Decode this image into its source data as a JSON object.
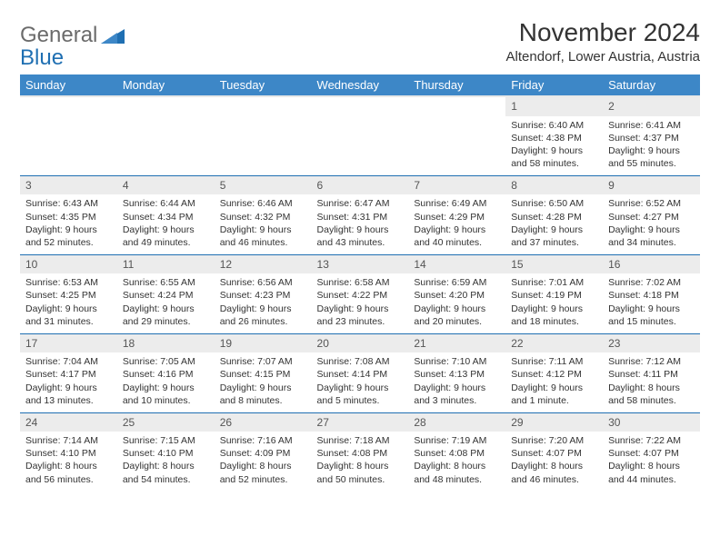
{
  "brand": {
    "word1": "General",
    "word2": "Blue"
  },
  "title": "November 2024",
  "location": "Altendorf, Lower Austria, Austria",
  "colors": {
    "header_bg": "#3d87c7",
    "header_text": "#ffffff",
    "daynum_bg": "#ececec",
    "cell_border": "#1f6fb2",
    "brand_gray": "#6b6b6b",
    "brand_blue": "#1f6fb2",
    "text": "#333333"
  },
  "weekdays": [
    "Sunday",
    "Monday",
    "Tuesday",
    "Wednesday",
    "Thursday",
    "Friday",
    "Saturday"
  ],
  "weeks": [
    [
      {
        "empty": true
      },
      {
        "empty": true
      },
      {
        "empty": true
      },
      {
        "empty": true
      },
      {
        "empty": true
      },
      {
        "day": "1",
        "sunrise": "Sunrise: 6:40 AM",
        "sunset": "Sunset: 4:38 PM",
        "daylight": "Daylight: 9 hours and 58 minutes."
      },
      {
        "day": "2",
        "sunrise": "Sunrise: 6:41 AM",
        "sunset": "Sunset: 4:37 PM",
        "daylight": "Daylight: 9 hours and 55 minutes."
      }
    ],
    [
      {
        "day": "3",
        "sunrise": "Sunrise: 6:43 AM",
        "sunset": "Sunset: 4:35 PM",
        "daylight": "Daylight: 9 hours and 52 minutes."
      },
      {
        "day": "4",
        "sunrise": "Sunrise: 6:44 AM",
        "sunset": "Sunset: 4:34 PM",
        "daylight": "Daylight: 9 hours and 49 minutes."
      },
      {
        "day": "5",
        "sunrise": "Sunrise: 6:46 AM",
        "sunset": "Sunset: 4:32 PM",
        "daylight": "Daylight: 9 hours and 46 minutes."
      },
      {
        "day": "6",
        "sunrise": "Sunrise: 6:47 AM",
        "sunset": "Sunset: 4:31 PM",
        "daylight": "Daylight: 9 hours and 43 minutes."
      },
      {
        "day": "7",
        "sunrise": "Sunrise: 6:49 AM",
        "sunset": "Sunset: 4:29 PM",
        "daylight": "Daylight: 9 hours and 40 minutes."
      },
      {
        "day": "8",
        "sunrise": "Sunrise: 6:50 AM",
        "sunset": "Sunset: 4:28 PM",
        "daylight": "Daylight: 9 hours and 37 minutes."
      },
      {
        "day": "9",
        "sunrise": "Sunrise: 6:52 AM",
        "sunset": "Sunset: 4:27 PM",
        "daylight": "Daylight: 9 hours and 34 minutes."
      }
    ],
    [
      {
        "day": "10",
        "sunrise": "Sunrise: 6:53 AM",
        "sunset": "Sunset: 4:25 PM",
        "daylight": "Daylight: 9 hours and 31 minutes."
      },
      {
        "day": "11",
        "sunrise": "Sunrise: 6:55 AM",
        "sunset": "Sunset: 4:24 PM",
        "daylight": "Daylight: 9 hours and 29 minutes."
      },
      {
        "day": "12",
        "sunrise": "Sunrise: 6:56 AM",
        "sunset": "Sunset: 4:23 PM",
        "daylight": "Daylight: 9 hours and 26 minutes."
      },
      {
        "day": "13",
        "sunrise": "Sunrise: 6:58 AM",
        "sunset": "Sunset: 4:22 PM",
        "daylight": "Daylight: 9 hours and 23 minutes."
      },
      {
        "day": "14",
        "sunrise": "Sunrise: 6:59 AM",
        "sunset": "Sunset: 4:20 PM",
        "daylight": "Daylight: 9 hours and 20 minutes."
      },
      {
        "day": "15",
        "sunrise": "Sunrise: 7:01 AM",
        "sunset": "Sunset: 4:19 PM",
        "daylight": "Daylight: 9 hours and 18 minutes."
      },
      {
        "day": "16",
        "sunrise": "Sunrise: 7:02 AM",
        "sunset": "Sunset: 4:18 PM",
        "daylight": "Daylight: 9 hours and 15 minutes."
      }
    ],
    [
      {
        "day": "17",
        "sunrise": "Sunrise: 7:04 AM",
        "sunset": "Sunset: 4:17 PM",
        "daylight": "Daylight: 9 hours and 13 minutes."
      },
      {
        "day": "18",
        "sunrise": "Sunrise: 7:05 AM",
        "sunset": "Sunset: 4:16 PM",
        "daylight": "Daylight: 9 hours and 10 minutes."
      },
      {
        "day": "19",
        "sunrise": "Sunrise: 7:07 AM",
        "sunset": "Sunset: 4:15 PM",
        "daylight": "Daylight: 9 hours and 8 minutes."
      },
      {
        "day": "20",
        "sunrise": "Sunrise: 7:08 AM",
        "sunset": "Sunset: 4:14 PM",
        "daylight": "Daylight: 9 hours and 5 minutes."
      },
      {
        "day": "21",
        "sunrise": "Sunrise: 7:10 AM",
        "sunset": "Sunset: 4:13 PM",
        "daylight": "Daylight: 9 hours and 3 minutes."
      },
      {
        "day": "22",
        "sunrise": "Sunrise: 7:11 AM",
        "sunset": "Sunset: 4:12 PM",
        "daylight": "Daylight: 9 hours and 1 minute."
      },
      {
        "day": "23",
        "sunrise": "Sunrise: 7:12 AM",
        "sunset": "Sunset: 4:11 PM",
        "daylight": "Daylight: 8 hours and 58 minutes."
      }
    ],
    [
      {
        "day": "24",
        "sunrise": "Sunrise: 7:14 AM",
        "sunset": "Sunset: 4:10 PM",
        "daylight": "Daylight: 8 hours and 56 minutes."
      },
      {
        "day": "25",
        "sunrise": "Sunrise: 7:15 AM",
        "sunset": "Sunset: 4:10 PM",
        "daylight": "Daylight: 8 hours and 54 minutes."
      },
      {
        "day": "26",
        "sunrise": "Sunrise: 7:16 AM",
        "sunset": "Sunset: 4:09 PM",
        "daylight": "Daylight: 8 hours and 52 minutes."
      },
      {
        "day": "27",
        "sunrise": "Sunrise: 7:18 AM",
        "sunset": "Sunset: 4:08 PM",
        "daylight": "Daylight: 8 hours and 50 minutes."
      },
      {
        "day": "28",
        "sunrise": "Sunrise: 7:19 AM",
        "sunset": "Sunset: 4:08 PM",
        "daylight": "Daylight: 8 hours and 48 minutes."
      },
      {
        "day": "29",
        "sunrise": "Sunrise: 7:20 AM",
        "sunset": "Sunset: 4:07 PM",
        "daylight": "Daylight: 8 hours and 46 minutes."
      },
      {
        "day": "30",
        "sunrise": "Sunrise: 7:22 AM",
        "sunset": "Sunset: 4:07 PM",
        "daylight": "Daylight: 8 hours and 44 minutes."
      }
    ]
  ]
}
